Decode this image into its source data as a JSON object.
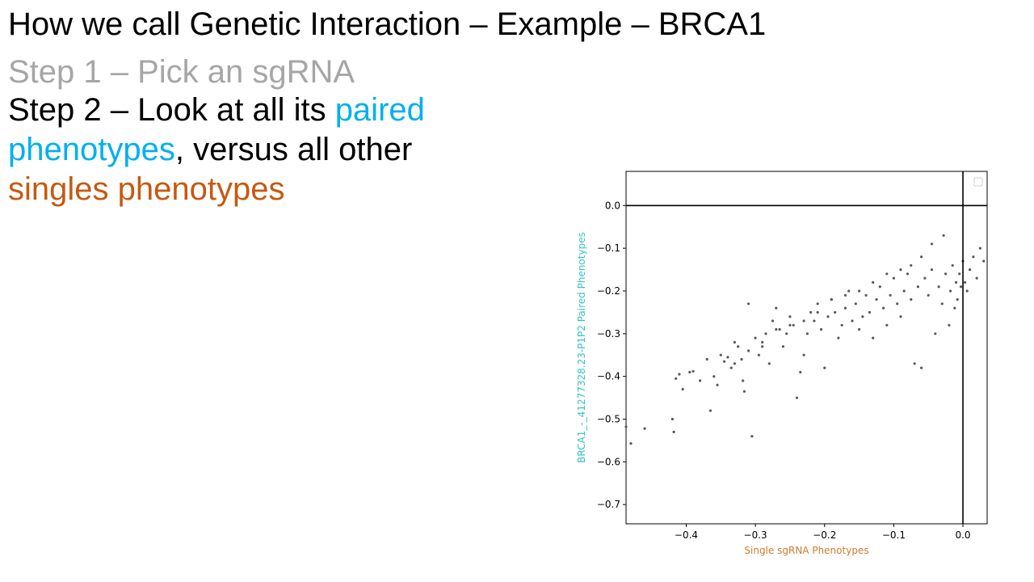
{
  "slide": {
    "title": "How we call Genetic Interaction – Example – BRCA1",
    "step1": "Step 1 – Pick an sgRNA",
    "step2": {
      "prefix": "Step 2 – Look at all its ",
      "paired": "paired phenotypes",
      "middle": ", versus all other ",
      "singles": "singles phenotypes"
    },
    "colors": {
      "step1": "#a6a6a6",
      "paired": "#00b0f0",
      "singles": "#c55a11",
      "ylabel": "#33c3c3",
      "xlabel": "#d07a2c",
      "points": "#595959"
    }
  },
  "chart_data": {
    "type": "scatter",
    "title": "",
    "xlabel": "Single sgRNA Phenotypes",
    "ylabel": "BRCA1_-_41277328.23-P1P2 Paired Phenotypes",
    "xlim": [
      -0.487,
      0.035
    ],
    "ylim": [
      -0.745,
      0.08
    ],
    "xticks": [
      -0.4,
      -0.3,
      -0.2,
      -0.1,
      0.0
    ],
    "yticks": [
      0.0,
      -0.1,
      -0.2,
      -0.3,
      -0.4,
      -0.5,
      -0.6,
      -0.7
    ],
    "reference_lines": {
      "x": 0.0,
      "y": 0.0
    },
    "legend": "top-right (empty)",
    "grid": false,
    "points": [
      [
        -0.487,
        -0.518
      ],
      [
        -0.48,
        -0.557
      ],
      [
        -0.46,
        -0.522
      ],
      [
        -0.42,
        -0.5
      ],
      [
        -0.418,
        -0.53
      ],
      [
        -0.415,
        -0.405
      ],
      [
        -0.41,
        -0.395
      ],
      [
        -0.405,
        -0.43
      ],
      [
        -0.395,
        -0.39
      ],
      [
        -0.39,
        -0.388
      ],
      [
        -0.38,
        -0.41
      ],
      [
        -0.37,
        -0.36
      ],
      [
        -0.365,
        -0.48
      ],
      [
        -0.36,
        -0.4
      ],
      [
        -0.355,
        -0.42
      ],
      [
        -0.35,
        -0.35
      ],
      [
        -0.345,
        -0.365
      ],
      [
        -0.34,
        -0.355
      ],
      [
        -0.335,
        -0.38
      ],
      [
        -0.33,
        -0.32
      ],
      [
        -0.325,
        -0.33
      ],
      [
        -0.32,
        -0.36
      ],
      [
        -0.318,
        -0.41
      ],
      [
        -0.316,
        -0.435
      ],
      [
        -0.31,
        -0.23
      ],
      [
        -0.305,
        -0.54
      ],
      [
        -0.3,
        -0.31
      ],
      [
        -0.295,
        -0.35
      ],
      [
        -0.29,
        -0.33
      ],
      [
        -0.285,
        -0.3
      ],
      [
        -0.28,
        -0.37
      ],
      [
        -0.275,
        -0.27
      ],
      [
        -0.27,
        -0.24
      ],
      [
        -0.265,
        -0.29
      ],
      [
        -0.26,
        -0.33
      ],
      [
        -0.255,
        -0.3
      ],
      [
        -0.25,
        -0.26
      ],
      [
        -0.245,
        -0.28
      ],
      [
        -0.24,
        -0.45
      ],
      [
        -0.235,
        -0.39
      ],
      [
        -0.23,
        -0.35
      ],
      [
        -0.225,
        -0.3
      ],
      [
        -0.22,
        -0.25
      ],
      [
        -0.215,
        -0.27
      ],
      [
        -0.21,
        -0.23
      ],
      [
        -0.205,
        -0.29
      ],
      [
        -0.2,
        -0.38
      ],
      [
        -0.195,
        -0.26
      ],
      [
        -0.19,
        -0.22
      ],
      [
        -0.185,
        -0.25
      ],
      [
        -0.18,
        -0.31
      ],
      [
        -0.175,
        -0.28
      ],
      [
        -0.17,
        -0.24
      ],
      [
        -0.165,
        -0.2
      ],
      [
        -0.16,
        -0.27
      ],
      [
        -0.155,
        -0.23
      ],
      [
        -0.15,
        -0.29
      ],
      [
        -0.145,
        -0.26
      ],
      [
        -0.14,
        -0.21
      ],
      [
        -0.135,
        -0.25
      ],
      [
        -0.13,
        -0.31
      ],
      [
        -0.125,
        -0.22
      ],
      [
        -0.12,
        -0.19
      ],
      [
        -0.115,
        -0.24
      ],
      [
        -0.11,
        -0.28
      ],
      [
        -0.105,
        -0.21
      ],
      [
        -0.1,
        -0.17
      ],
      [
        -0.095,
        -0.23
      ],
      [
        -0.09,
        -0.26
      ],
      [
        -0.085,
        -0.2
      ],
      [
        -0.08,
        -0.16
      ],
      [
        -0.075,
        -0.22
      ],
      [
        -0.07,
        -0.37
      ],
      [
        -0.065,
        -0.19
      ],
      [
        -0.06,
        -0.38
      ],
      [
        -0.055,
        -0.17
      ],
      [
        -0.05,
        -0.21
      ],
      [
        -0.045,
        -0.15
      ],
      [
        -0.04,
        -0.3
      ],
      [
        -0.035,
        -0.19
      ],
      [
        -0.03,
        -0.23
      ],
      [
        -0.025,
        -0.16
      ],
      [
        -0.02,
        -0.28
      ],
      [
        -0.018,
        -0.2
      ],
      [
        -0.015,
        -0.14
      ],
      [
        -0.012,
        -0.24
      ],
      [
        -0.01,
        -0.18
      ],
      [
        -0.008,
        -0.22
      ],
      [
        -0.005,
        -0.16
      ],
      [
        -0.003,
        -0.19
      ],
      [
        0.0,
        -0.13
      ],
      [
        0.003,
        -0.18
      ],
      [
        0.006,
        -0.2
      ],
      [
        0.01,
        -0.15
      ],
      [
        0.015,
        -0.12
      ],
      [
        0.02,
        -0.17
      ],
      [
        0.025,
        -0.1
      ],
      [
        0.03,
        -0.13
      ],
      [
        -0.028,
        -0.07
      ],
      [
        -0.045,
        -0.09
      ],
      [
        -0.06,
        -0.12
      ],
      [
        -0.075,
        -0.14
      ],
      [
        -0.09,
        -0.15
      ],
      [
        -0.11,
        -0.16
      ],
      [
        -0.13,
        -0.18
      ],
      [
        -0.15,
        -0.2
      ],
      [
        -0.17,
        -0.21
      ],
      [
        -0.19,
        -0.22
      ],
      [
        -0.21,
        -0.25
      ],
      [
        -0.23,
        -0.27
      ],
      [
        -0.25,
        -0.28
      ],
      [
        -0.27,
        -0.29
      ],
      [
        -0.29,
        -0.32
      ],
      [
        -0.31,
        -0.34
      ],
      [
        -0.33,
        -0.37
      ]
    ]
  }
}
